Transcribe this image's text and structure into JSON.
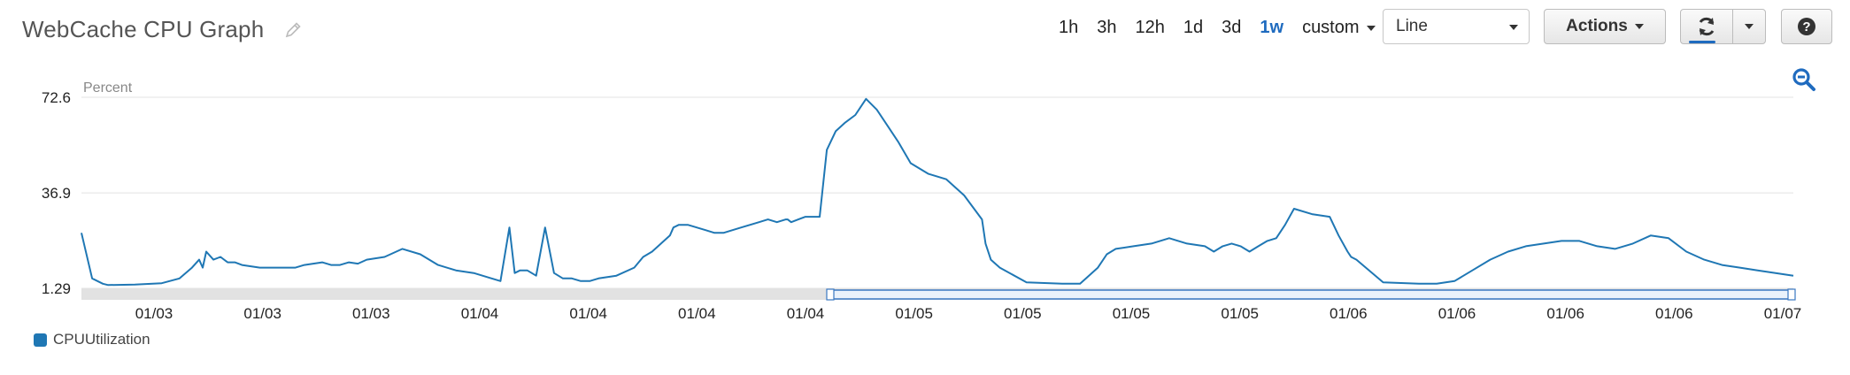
{
  "header": {
    "title": "WebCache CPU Graph",
    "range_options": [
      "1h",
      "3h",
      "12h",
      "1d",
      "3d",
      "1w"
    ],
    "active_range": "1w",
    "custom_label": "custom",
    "chart_type_value": "Line",
    "actions_label": "Actions",
    "icons": [
      "pencil-icon",
      "refresh-icon",
      "chevron-down-icon",
      "help-icon",
      "zoom-out-icon"
    ]
  },
  "legend": {
    "label": "CPUUtilization",
    "color": "#1f77b4"
  },
  "chart_data": {
    "type": "line",
    "ylabel": "Percent",
    "ylim": [
      1.29,
      72.6
    ],
    "yticks": [
      "72.6",
      "36.9",
      "1.29"
    ],
    "xtick_labels": [
      "01/03",
      "01/03",
      "01/03",
      "01/04",
      "01/04",
      "01/04",
      "01/04",
      "01/05",
      "01/05",
      "01/05",
      "01/05",
      "01/06",
      "01/06",
      "01/06",
      "01/06",
      "01/07"
    ],
    "grid": true,
    "series": [
      {
        "name": "CPUUtilization",
        "color": "#1f77b4",
        "x": [
          0,
          0.6,
          1.2,
          1.5,
          3,
          4.5,
          5.5,
          6.2,
          6.6,
          6.8,
          7,
          7.4,
          7.8,
          8.2,
          8.6,
          9,
          9.5,
          10,
          11,
          12,
          12.5,
          13,
          13.5,
          14,
          14.5,
          15,
          15.5,
          16,
          17,
          18,
          19,
          20,
          21,
          22,
          23,
          23.5,
          24,
          24.3,
          24.6,
          25,
          25.5,
          26,
          26.5,
          27,
          27.5,
          28,
          28.5,
          29,
          30,
          31,
          31.5,
          32,
          33,
          33.2,
          33.5,
          34,
          35,
          35.5,
          36,
          37,
          38,
          38.5,
          39,
          39.5,
          39.6,
          39.8,
          40.2,
          40.6,
          41,
          41.4,
          41.8,
          42.3,
          42.8,
          43.4,
          44,
          44.6,
          45.2,
          45.8,
          46.5,
          47.5,
          48.5,
          49.5,
          50.5,
          50.7,
          51,
          51.5,
          53,
          55,
          56,
          56.5,
          57,
          57.5,
          58,
          59,
          60,
          61,
          62,
          63,
          63.5,
          64,
          64.5,
          65,
          65.5,
          66,
          66.5,
          67,
          67.5,
          68,
          69,
          70,
          70.5,
          71,
          71.2,
          71.5,
          73,
          75,
          76,
          77,
          78,
          79,
          80,
          81,
          82,
          83,
          84,
          85,
          86,
          87,
          88,
          89,
          90,
          91,
          92,
          93,
          94,
          95,
          96
        ],
        "y": [
          22,
          5,
          3,
          2.5,
          2.7,
          3.2,
          5,
          9,
          12,
          9,
          15,
          12,
          13,
          11,
          11,
          10,
          9.5,
          9,
          9,
          9,
          10,
          10.5,
          11,
          10,
          10,
          11,
          10.5,
          12,
          13,
          16,
          14,
          10,
          8,
          7,
          5,
          4,
          24,
          7,
          8,
          8,
          6,
          24,
          7,
          5,
          5,
          4,
          4,
          5,
          6,
          9,
          13,
          15,
          21,
          24,
          25,
          25,
          23,
          22,
          22,
          24,
          26,
          27,
          26,
          27,
          27,
          26,
          27,
          28,
          28,
          28,
          53,
          60,
          63,
          66,
          72,
          68,
          62,
          56,
          48,
          44,
          42,
          36,
          27,
          18,
          12,
          9,
          3.5,
          3,
          3,
          6,
          9,
          14,
          16,
          17,
          18,
          20,
          18,
          17,
          15,
          17,
          18,
          17,
          15,
          17,
          19,
          20,
          25,
          31,
          29,
          28,
          21,
          15,
          13,
          12,
          3.5,
          3,
          3,
          4,
          8,
          12,
          15,
          17,
          18,
          19,
          19,
          17,
          16,
          18,
          21,
          20,
          15,
          12,
          10,
          9,
          8,
          7,
          6
        ]
      }
    ]
  }
}
